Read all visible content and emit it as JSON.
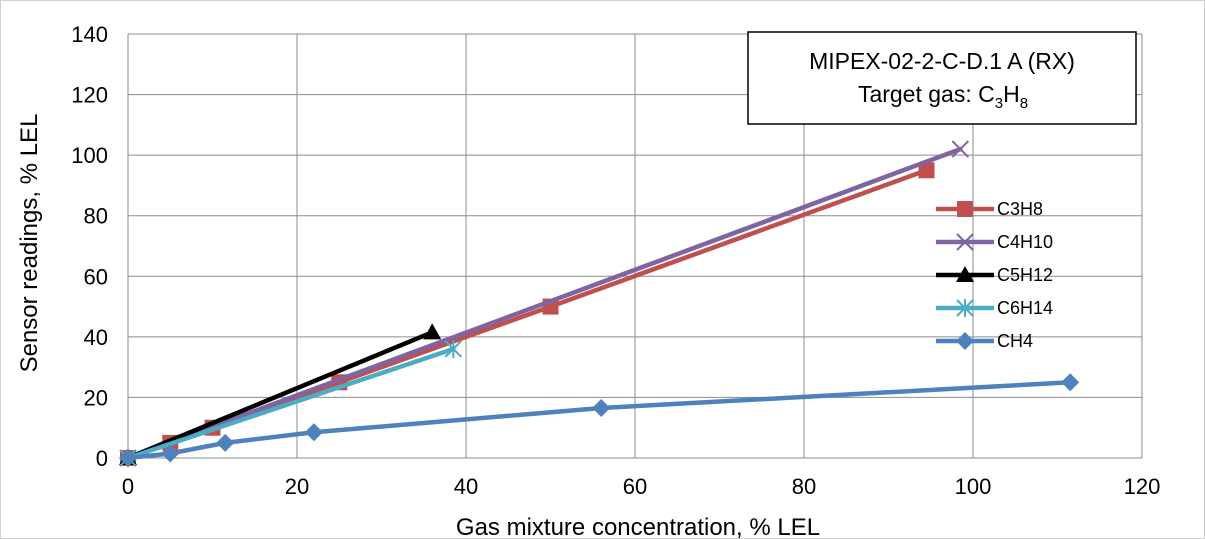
{
  "chart_data": {
    "type": "line",
    "title_box": {
      "line1": "MIPEX-02-2-C-D.1 A (RX)",
      "line2_prefix": "Target gas: C",
      "sub1": "3",
      "mid": "H",
      "sub2": "8"
    },
    "xlabel": "Gas mixture concentration, % LEL",
    "ylabel": "Sensor readings, % LEL",
    "xlim": [
      0,
      120
    ],
    "ylim": [
      0,
      140
    ],
    "x_ticks": [
      "0",
      "20",
      "40",
      "60",
      "80",
      "100",
      "120"
    ],
    "y_ticks": [
      "0",
      "20",
      "40",
      "60",
      "80",
      "100",
      "120",
      "140"
    ],
    "grid": true,
    "legend_position": "right",
    "series": [
      {
        "name": "C3H8",
        "color": "#c0504d",
        "marker": "square",
        "points": [
          [
            0,
            0
          ],
          [
            5,
            5
          ],
          [
            10,
            10
          ],
          [
            25,
            25
          ],
          [
            50,
            50
          ],
          [
            94.5,
            95
          ]
        ]
      },
      {
        "name": "C4H10",
        "color": "#8064a2",
        "marker": "x",
        "points": [
          [
            0,
            0
          ],
          [
            98.5,
            102
          ]
        ]
      },
      {
        "name": "C5H12",
        "color": "#000000",
        "marker": "triangle",
        "points": [
          [
            0,
            0
          ],
          [
            36,
            41.5
          ]
        ]
      },
      {
        "name": "C6H14",
        "color": "#4bacc6",
        "marker": "star",
        "points": [
          [
            0,
            0
          ],
          [
            38.5,
            36
          ]
        ]
      },
      {
        "name": "CH4",
        "color": "#4f81bd",
        "marker": "diamond",
        "points": [
          [
            0,
            0
          ],
          [
            5,
            1.5
          ],
          [
            11.5,
            5
          ],
          [
            22,
            8.5
          ],
          [
            56,
            16.5
          ],
          [
            111.5,
            25
          ]
        ]
      }
    ]
  }
}
